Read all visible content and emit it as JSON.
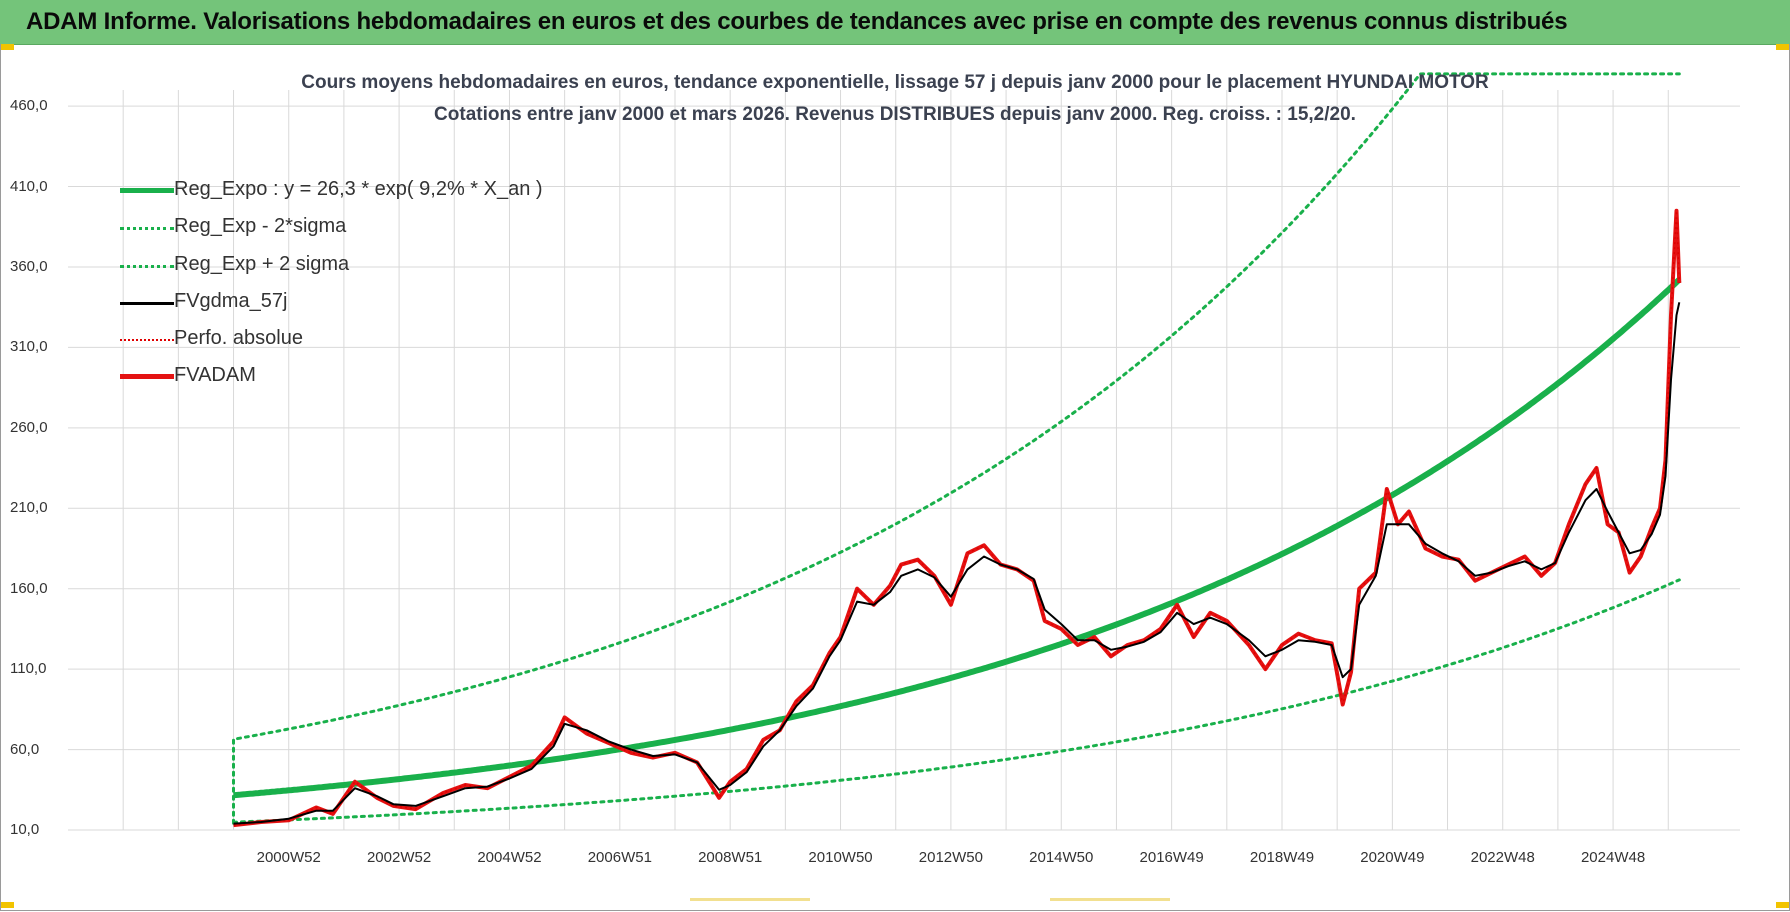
{
  "banner": {
    "title": "ADAM Informe. Valorisations hebdomadaires en euros et des courbes de tendances avec prise en compte des revenus connus distribués"
  },
  "colors": {
    "banner_bg": "#74c47a",
    "reg_expo": "#19b04b",
    "sigma": "#19b04b",
    "fvgdma": "#000000",
    "perfo": "#e00000",
    "fvadam": "#e41212",
    "grid": "#d9d9d9"
  },
  "chart_data": {
    "type": "line",
    "title": "Cours moyens hebdomadaires en euros, tendance exponentielle, lissage 57 j depuis janv 2000 pour le placement HYUNDAI MOTOR",
    "subtitle": "Cotations entre janv 2000 et mars 2026. Revenus DISTRIBUES depuis janv 2000. Reg. croiss. : 15,2/20.",
    "xlabel": "",
    "ylabel": "",
    "ylim": [
      10,
      470
    ],
    "yticks": [
      "460,0",
      "410,0",
      "360,0",
      "310,0",
      "260,0",
      "210,0",
      "160,0",
      "110,0",
      "60,0",
      "10,0"
    ],
    "xticks": [
      "2000W52",
      "2002W52",
      "2004W52",
      "2006W51",
      "2008W51",
      "2010W50",
      "2012W50",
      "2014W50",
      "2016W49",
      "2018W49",
      "2020W49",
      "2022W48",
      "2024W48"
    ],
    "xtick_years": [
      2001.0,
      2003.0,
      2005.0,
      2007.0,
      2009.0,
      2011.0,
      2013.0,
      2015.0,
      2017.0,
      2019.0,
      2021.0,
      2023.0,
      2025.0
    ],
    "xrange_years": [
      1997.0,
      2027.3
    ],
    "data_start_year": 2000.0,
    "data_end_year": 2026.2,
    "grid": true,
    "legend_position": "top-left",
    "legend": [
      {
        "label": "Reg_Expo : y = 26,3 * exp( 9,2% *  X_an )",
        "style": "solid-thick-green"
      },
      {
        "label": "Reg_Exp - 2*sigma",
        "style": "dotted-green"
      },
      {
        "label": "Reg_Exp + 2 sigma",
        "style": "dotted-green"
      },
      {
        "label": "FVgdma_57j",
        "style": "solid-black"
      },
      {
        "label": "Perfo. absolue",
        "style": "dotted-red"
      },
      {
        "label": "FVADAM",
        "style": "solid-thick-red"
      }
    ],
    "regression": {
      "a": 26.3,
      "rate": 0.092,
      "lower_factor": 0.47,
      "upper_factor": 2.1,
      "cap": 480
    },
    "series": [
      {
        "name": "FVADAM",
        "x": [
          2000.0,
          2000.5,
          2001.0,
          2001.5,
          2001.8,
          2002.2,
          2002.6,
          2002.9,
          2003.3,
          2003.8,
          2004.2,
          2004.6,
          2005.0,
          2005.4,
          2005.8,
          2006.0,
          2006.4,
          2006.8,
          2007.2,
          2007.6,
          2008.0,
          2008.4,
          2008.8,
          2009.0,
          2009.3,
          2009.6,
          2009.9,
          2010.2,
          2010.5,
          2010.8,
          2011.0,
          2011.3,
          2011.6,
          2011.9,
          2012.1,
          2012.4,
          2012.7,
          2013.0,
          2013.3,
          2013.6,
          2013.9,
          2014.2,
          2014.5,
          2014.7,
          2015.0,
          2015.3,
          2015.6,
          2015.9,
          2016.2,
          2016.5,
          2016.8,
          2017.1,
          2017.4,
          2017.7,
          2018.0,
          2018.4,
          2018.7,
          2019.0,
          2019.3,
          2019.6,
          2019.9,
          2020.1,
          2020.25,
          2020.4,
          2020.7,
          2020.9,
          2021.1,
          2021.3,
          2021.6,
          2021.9,
          2022.2,
          2022.5,
          2022.8,
          2023.1,
          2023.4,
          2023.7,
          2023.95,
          2024.2,
          2024.5,
          2024.7,
          2024.9,
          2025.1,
          2025.3,
          2025.5,
          2025.7,
          2025.85,
          2025.95,
          2026.05,
          2026.15,
          2026.2
        ],
        "values": [
          13,
          15,
          16,
          24,
          20,
          40,
          30,
          25,
          23,
          33,
          38,
          36,
          43,
          50,
          65,
          80,
          70,
          64,
          58,
          55,
          58,
          52,
          30,
          40,
          48,
          66,
          72,
          90,
          100,
          120,
          130,
          160,
          150,
          162,
          175,
          178,
          168,
          150,
          182,
          187,
          175,
          172,
          165,
          140,
          135,
          125,
          130,
          118,
          125,
          128,
          135,
          150,
          130,
          145,
          140,
          125,
          110,
          125,
          132,
          128,
          126,
          88,
          108,
          160,
          170,
          222,
          200,
          208,
          185,
          180,
          178,
          165,
          170,
          175,
          180,
          168,
          176,
          200,
          225,
          235,
          200,
          195,
          170,
          180,
          198,
          210,
          240,
          330,
          395,
          350
        ]
      },
      {
        "name": "FVgdma_57j",
        "x": [
          2000.0,
          2000.5,
          2001.0,
          2001.5,
          2001.8,
          2002.2,
          2002.6,
          2002.9,
          2003.3,
          2003.8,
          2004.2,
          2004.6,
          2005.0,
          2005.4,
          2005.8,
          2006.0,
          2006.4,
          2006.8,
          2007.2,
          2007.6,
          2008.0,
          2008.4,
          2008.8,
          2009.0,
          2009.3,
          2009.6,
          2009.9,
          2010.2,
          2010.5,
          2010.8,
          2011.0,
          2011.3,
          2011.6,
          2011.9,
          2012.1,
          2012.4,
          2012.7,
          2013.0,
          2013.3,
          2013.6,
          2013.9,
          2014.2,
          2014.5,
          2014.7,
          2015.0,
          2015.3,
          2015.6,
          2015.9,
          2016.2,
          2016.5,
          2016.8,
          2017.1,
          2017.4,
          2017.7,
          2018.0,
          2018.4,
          2018.7,
          2019.0,
          2019.3,
          2019.6,
          2019.9,
          2020.1,
          2020.25,
          2020.4,
          2020.7,
          2020.9,
          2021.1,
          2021.3,
          2021.6,
          2021.9,
          2022.2,
          2022.5,
          2022.8,
          2023.1,
          2023.4,
          2023.7,
          2023.95,
          2024.2,
          2024.5,
          2024.7,
          2024.9,
          2025.1,
          2025.3,
          2025.5,
          2025.7,
          2025.85,
          2025.95,
          2026.05,
          2026.15,
          2026.2
        ],
        "values": [
          14,
          15,
          17,
          22,
          22,
          36,
          31,
          26,
          25,
          31,
          36,
          37,
          42,
          48,
          62,
          76,
          72,
          65,
          60,
          56,
          57,
          52,
          35,
          38,
          46,
          62,
          72,
          87,
          98,
          118,
          128,
          152,
          150,
          158,
          168,
          172,
          167,
          155,
          172,
          180,
          175,
          172,
          166,
          147,
          138,
          128,
          128,
          122,
          124,
          127,
          133,
          145,
          138,
          142,
          138,
          128,
          118,
          122,
          128,
          127,
          125,
          105,
          110,
          150,
          168,
          200,
          200,
          200,
          188,
          182,
          177,
          168,
          170,
          174,
          177,
          172,
          176,
          195,
          215,
          222,
          208,
          195,
          182,
          184,
          194,
          206,
          230,
          290,
          330,
          338
        ]
      }
    ]
  }
}
